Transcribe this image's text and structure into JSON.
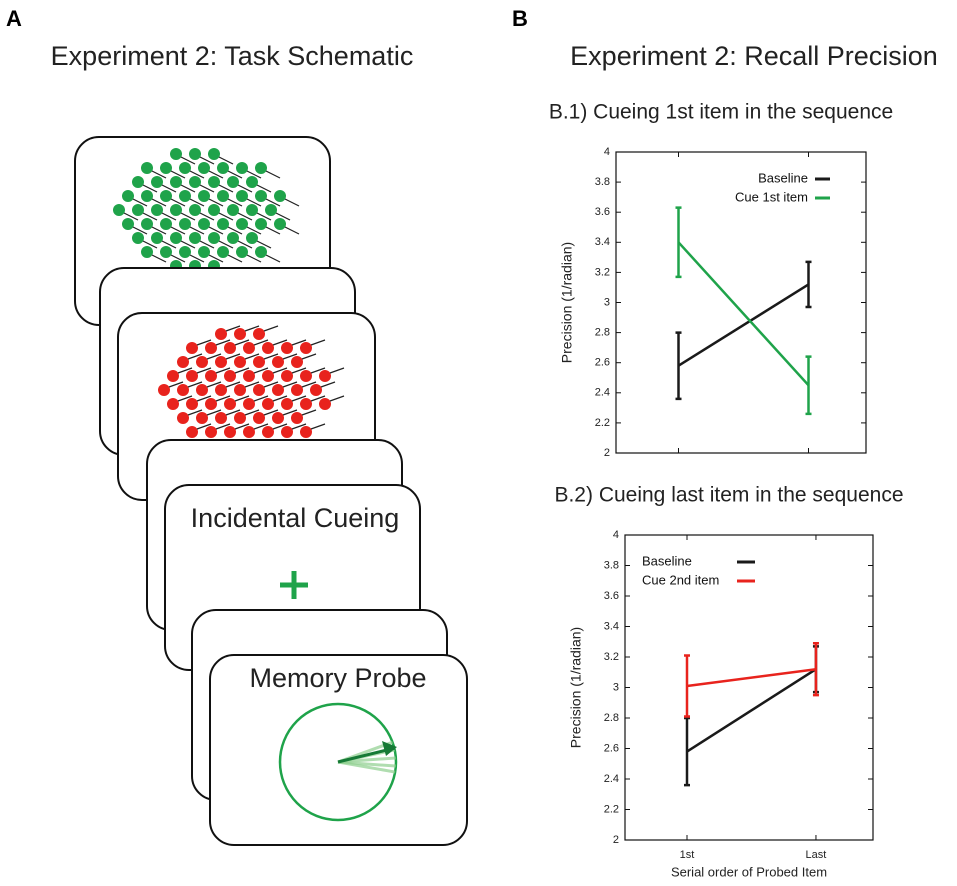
{
  "panels": {
    "a": {
      "letter": "A",
      "title": "Experiment 2: Task Schematic",
      "cue_text": "Incidental Cueing",
      "probe_text": "Memory Probe"
    },
    "b": {
      "letter": "B",
      "title": "Experiment 2: Recall Precision"
    }
  },
  "chart_data": [
    {
      "type": "line",
      "title": "B.1) Cueing 1st item in the sequence",
      "ylabel": "Precision (1/radian)",
      "categories": [
        null,
        null
      ],
      "ylim": [
        2,
        4
      ],
      "yticks": [
        2,
        2.2,
        2.4,
        2.6,
        2.8,
        3,
        3.2,
        3.4,
        3.6,
        3.8,
        4
      ],
      "legend": "upper right",
      "series": [
        {
          "name": "Baseline",
          "color": "#1a1a1a",
          "values": [
            2.58,
            3.12
          ],
          "errors": [
            0.22,
            0.15
          ]
        },
        {
          "name": "Cue 1st item",
          "color": "#1fa34a",
          "values": [
            3.4,
            2.45
          ],
          "errors": [
            0.23,
            0.19
          ]
        }
      ]
    },
    {
      "type": "line",
      "title": "B.2) Cueing last item in the sequence",
      "ylabel": "Precision (1/radian)",
      "xlabel": "Serial order of Probed Item",
      "categories": [
        "1st",
        "Last"
      ],
      "ylim": [
        2,
        4
      ],
      "yticks": [
        2,
        2.2,
        2.4,
        2.6,
        2.8,
        3,
        3.2,
        3.4,
        3.6,
        3.8,
        4
      ],
      "legend": "upper left",
      "series": [
        {
          "name": "Baseline",
          "color": "#1a1a1a",
          "values": [
            2.58,
            3.12
          ],
          "errors": [
            0.22,
            0.15
          ]
        },
        {
          "name": "Cue 2nd item",
          "color": "#e8231d",
          "values": [
            3.01,
            3.12
          ],
          "errors": [
            0.2,
            0.17
          ]
        }
      ]
    }
  ]
}
